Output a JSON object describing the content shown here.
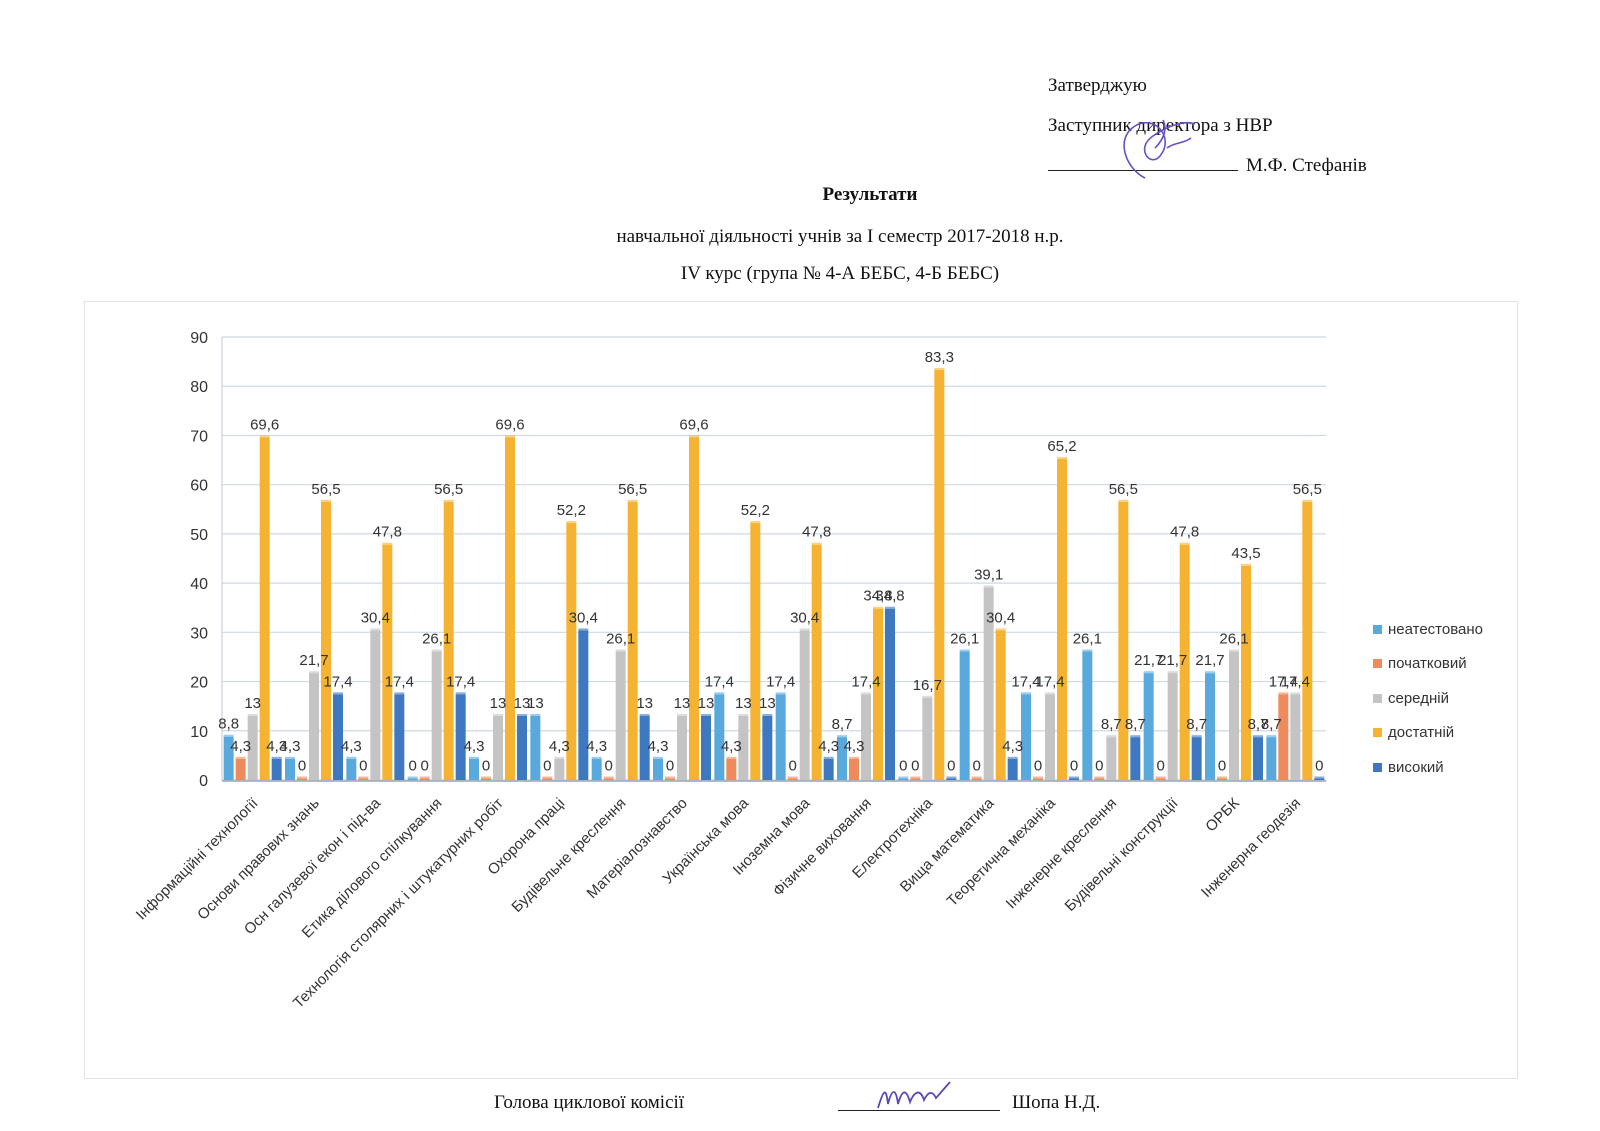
{
  "approval": {
    "approve_label": "Затверджую",
    "position": "Заступник директора з НВР",
    "name": "М.Ф. Стефанів"
  },
  "heading": {
    "title": "Результати",
    "subtitle": "навчальної діяльності учнів за І семестр 2017-2018 н.р.",
    "group": "ІV курс (група № 4-А БЕБС, 4-Б БЕБС)"
  },
  "footer": {
    "role": "Голова циклової комісії",
    "name": "Шопа Н.Д."
  },
  "colors": {
    "неатестовано": "#5aa9dd",
    "початковий": "#ee8a5c",
    "середній": "#c4c4c4",
    "достатній": "#f5b331",
    "високий": "#3d78c0"
  },
  "chart_data": {
    "type": "bar",
    "title": "",
    "xlabel": "",
    "ylabel": "",
    "ylim": [
      0,
      90
    ],
    "yticks": [
      0,
      10,
      20,
      30,
      40,
      50,
      60,
      70,
      80,
      90
    ],
    "grid": true,
    "legend_position": "right",
    "categories": [
      "Інформаційні технології",
      "Основи правових знань",
      "Осн галузевої екон і під-ва",
      "Етика ділового спілкування",
      "Технологія столярних і штукатурних робіт",
      "Охорона праці",
      "Будівельне креслення",
      "Матеріалознавство",
      "Українська мова",
      "Іноземна мова",
      "Фізичне виховання",
      "Електротехніка",
      "Вища математика",
      "Теоретична механіка",
      "Інженерне креслення",
      "Будівельні конструкції",
      "ОРБК",
      "Інженерна геодезія"
    ],
    "series": [
      {
        "name": "неатестовано",
        "values": [
          8.8,
          4.3,
          4.3,
          0,
          4.3,
          13,
          4.3,
          4.3,
          17.4,
          17.4,
          8.7,
          0,
          26.1,
          17.4,
          26.1,
          21.7,
          21.7,
          8.7
        ]
      },
      {
        "name": "початковий",
        "values": [
          4.3,
          0,
          0,
          0,
          0,
          0,
          0,
          0,
          4.3,
          0,
          4.3,
          0,
          0,
          0,
          0,
          0,
          0,
          17.4
        ]
      },
      {
        "name": "середній",
        "values": [
          13,
          21.7,
          30.4,
          26.1,
          13,
          4.3,
          26.1,
          13,
          13,
          30.4,
          17.4,
          16.7,
          39.1,
          17.4,
          8.7,
          21.7,
          26.1,
          17.4
        ]
      },
      {
        "name": "достатній",
        "values": [
          69.6,
          56.5,
          47.8,
          56.5,
          69.6,
          52.2,
          56.5,
          69.6,
          52.2,
          47.8,
          34.8,
          83.3,
          30.4,
          65.2,
          56.5,
          47.8,
          43.5,
          56.5
        ]
      },
      {
        "name": "високий",
        "values": [
          4.3,
          17.4,
          17.4,
          17.4,
          13,
          30.4,
          13,
          13,
          13,
          4.3,
          34.8,
          0,
          4.3,
          0,
          8.7,
          8.7,
          8.7,
          0
        ]
      }
    ]
  }
}
